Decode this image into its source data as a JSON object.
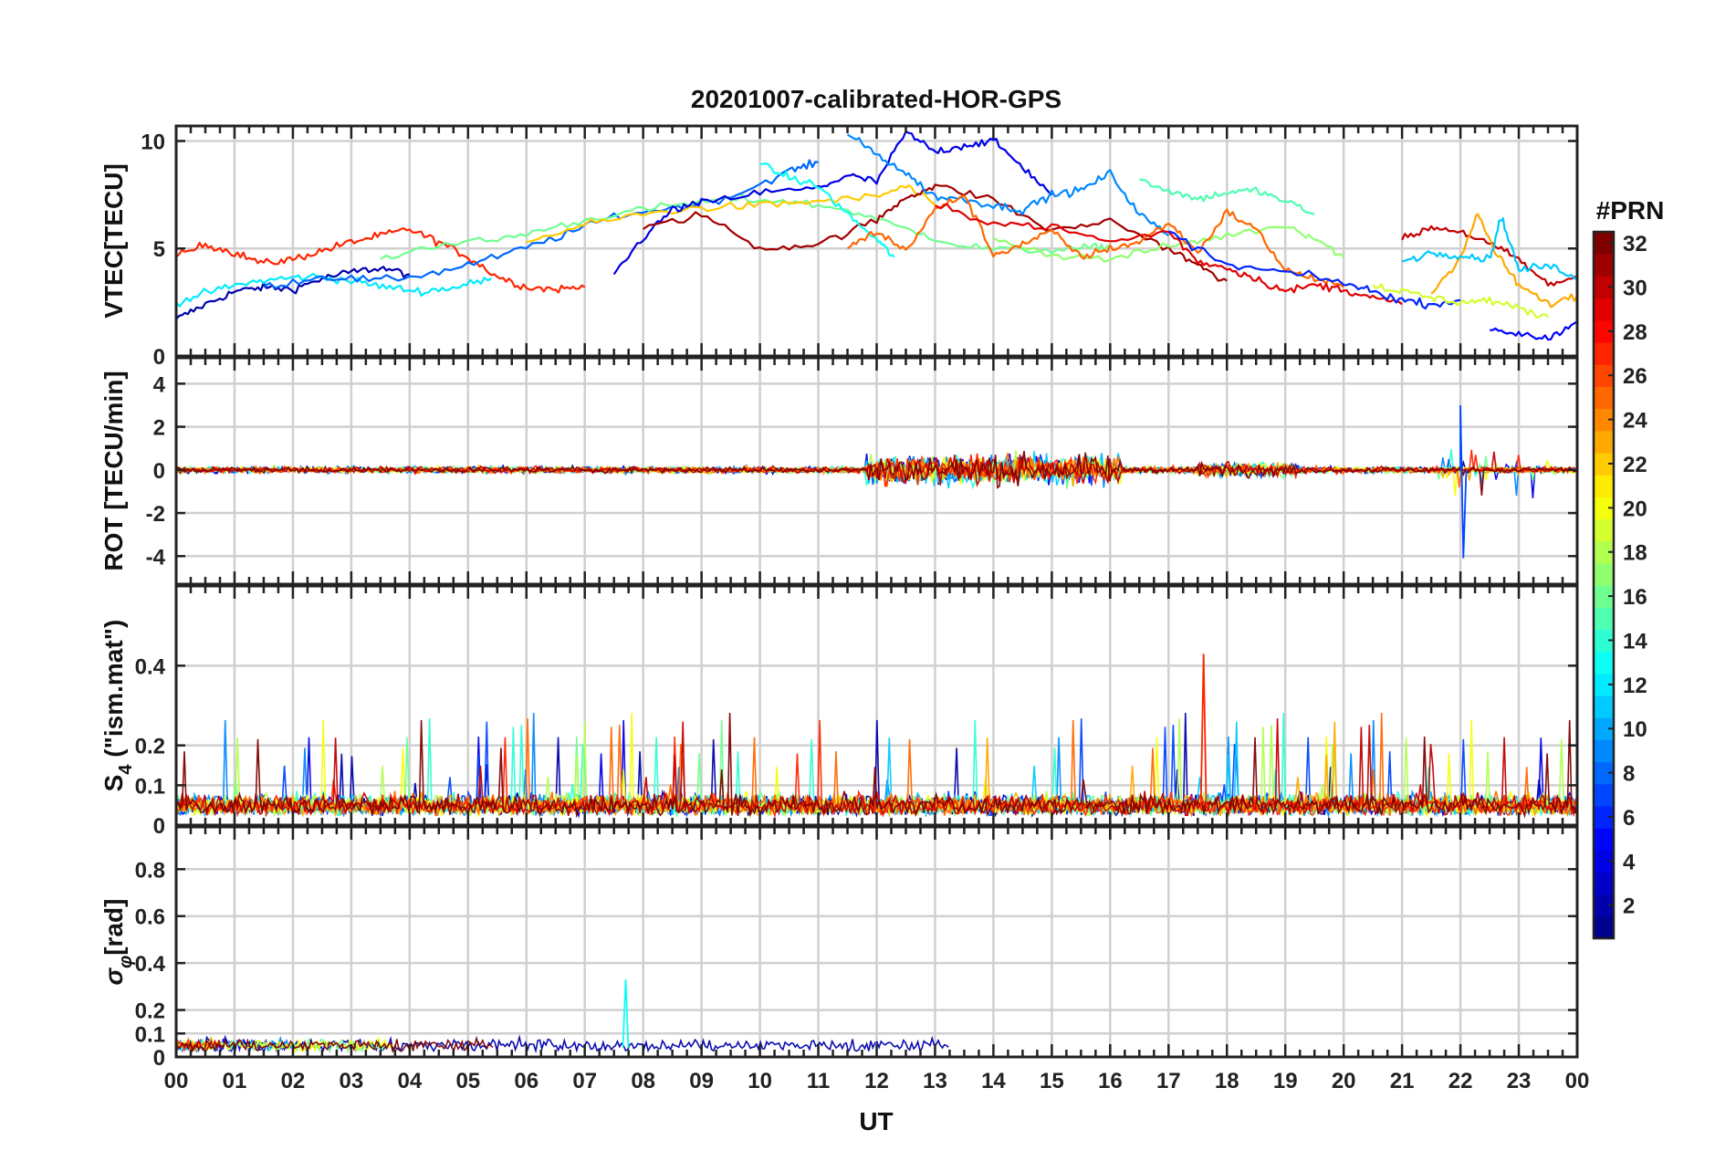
{
  "figure": {
    "title": "20201007-calibrated-HOR-GPS",
    "xlabel": "UT",
    "x_ticks": [
      "00",
      "01",
      "02",
      "03",
      "04",
      "05",
      "06",
      "07",
      "08",
      "09",
      "10",
      "11",
      "12",
      "13",
      "14",
      "15",
      "16",
      "17",
      "18",
      "19",
      "20",
      "21",
      "22",
      "23",
      "00"
    ]
  },
  "colorbar": {
    "title": "#PRN",
    "ticks": [
      "2",
      "4",
      "6",
      "8",
      "10",
      "12",
      "14",
      "16",
      "18",
      "20",
      "22",
      "24",
      "26",
      "28",
      "30",
      "32"
    ],
    "range": [
      1,
      32
    ],
    "colormap": [
      "#00008f",
      "#0000ff",
      "#0080ff",
      "#00ffff",
      "#80ff80",
      "#ffff00",
      "#ff8000",
      "#ff0000",
      "#800000"
    ]
  },
  "chart_data": [
    {
      "type": "line",
      "name": "vtec",
      "ylabel": "VTEC[TECU]",
      "xlim": [
        0,
        24
      ],
      "ylim": [
        0,
        10.7
      ],
      "y_ticks": [
        0,
        5,
        10
      ],
      "y_tick_labels": [
        "0",
        "5",
        "10"
      ],
      "series": [
        {
          "prn": 2,
          "x": [
            0.0,
            0.5,
            1.0,
            1.5,
            2.0,
            2.5,
            3.0,
            3.5,
            4.0
          ],
          "y": [
            1.7,
            2.4,
            3.0,
            3.2,
            3.1,
            3.6,
            3.9,
            4.1,
            3.8
          ]
        },
        {
          "prn": 27,
          "x": [
            0.0,
            0.5,
            1.0,
            1.5,
            2.0,
            2.5,
            3.0,
            3.5,
            4.0,
            4.5,
            5.0,
            5.5,
            6.0,
            6.5,
            7.0
          ],
          "y": [
            4.6,
            5.2,
            4.8,
            4.3,
            4.5,
            4.9,
            5.3,
            5.6,
            5.9,
            5.3,
            4.6,
            3.7,
            3.2,
            3.1,
            3.2
          ]
        },
        {
          "prn": 12,
          "x": [
            0.0,
            0.6,
            1.2,
            1.8,
            2.4,
            3.0,
            3.6,
            4.2,
            4.8,
            5.4
          ],
          "y": [
            2.5,
            3.0,
            3.4,
            3.6,
            3.7,
            3.5,
            3.2,
            3.0,
            3.2,
            3.6
          ]
        },
        {
          "prn": 8,
          "x": [
            1.5,
            2.5,
            3.5,
            4.5,
            5.5,
            6.5,
            7.5,
            8.5,
            9.5,
            10.5,
            11.0
          ],
          "y": [
            3.2,
            3.7,
            3.5,
            3.9,
            4.6,
            5.5,
            6.5,
            6.9,
            7.4,
            8.6,
            9.0
          ]
        },
        {
          "prn": 16,
          "x": [
            3.5,
            4.5,
            5.5,
            6.5,
            7.5,
            8.5,
            9.5,
            10.5,
            11.5,
            12.5,
            13.5,
            14.5,
            15.5,
            16.0
          ],
          "y": [
            4.5,
            5.2,
            5.4,
            6.0,
            6.6,
            7.0,
            7.3,
            7.2,
            6.8,
            5.9,
            5.1,
            4.9,
            5.0,
            5.1
          ]
        },
        {
          "prn": 22,
          "x": [
            6.0,
            7.0,
            8.0,
            9.0,
            10.0,
            11.0,
            12.0,
            12.5,
            13.0
          ],
          "y": [
            5.3,
            6.1,
            6.6,
            6.9,
            7.0,
            7.2,
            7.4,
            7.9,
            7.0
          ]
        },
        {
          "prn": 4,
          "x": [
            7.5,
            8.0,
            8.5,
            9.0,
            10.0,
            11.0,
            11.5,
            12.0,
            12.5,
            13.0,
            13.5,
            14.0,
            14.5,
            15.0
          ],
          "y": [
            3.8,
            5.5,
            6.8,
            7.1,
            7.6,
            7.8,
            8.4,
            8.1,
            10.4,
            9.5,
            9.8,
            10.0,
            8.8,
            7.5
          ]
        },
        {
          "prn": 31,
          "x": [
            8.0,
            9.0,
            10.0,
            11.0,
            12.0,
            12.5,
            13.0,
            14.0,
            15.0,
            16.0,
            17.0,
            17.5,
            18.0
          ],
          "y": [
            5.9,
            6.6,
            5.0,
            5.2,
            6.3,
            7.4,
            7.9,
            7.3,
            5.8,
            6.3,
            5.0,
            4.2,
            3.5
          ]
        },
        {
          "prn": 13,
          "x": [
            10.0,
            10.5,
            11.0,
            11.5,
            12.0,
            12.3
          ],
          "y": [
            8.9,
            8.3,
            7.9,
            6.6,
            5.4,
            4.6
          ]
        },
        {
          "prn": 9,
          "x": [
            11.5,
            12.0,
            12.5,
            13.0,
            13.5,
            14.0,
            14.5,
            15.0,
            15.5,
            16.0,
            16.5,
            17.0
          ],
          "y": [
            10.3,
            9.4,
            8.5,
            7.4,
            7.3,
            7.0,
            6.8,
            7.5,
            7.7,
            8.5,
            6.6,
            5.6
          ]
        },
        {
          "prn": 17,
          "x": [
            14.0,
            15.0,
            16.0,
            17.0,
            18.0,
            19.0,
            19.5,
            20.0
          ],
          "y": [
            5.5,
            4.7,
            4.5,
            5.1,
            5.6,
            6.1,
            5.5,
            4.6
          ]
        },
        {
          "prn": 15,
          "x": [
            16.5,
            17.0,
            17.5,
            18.0,
            18.5,
            19.0,
            19.5
          ],
          "y": [
            8.2,
            7.7,
            7.3,
            7.6,
            7.7,
            7.2,
            6.6
          ]
        },
        {
          "prn": 25,
          "x": [
            11.5,
            12.0,
            12.5,
            13.0,
            13.5,
            14.0,
            14.5,
            15.0,
            15.5,
            16.0,
            16.5,
            17.0,
            17.5,
            18.0,
            18.5,
            19.0,
            19.5,
            20.0
          ],
          "y": [
            5.0,
            5.8,
            4.9,
            6.8,
            7.5,
            4.7,
            5.2,
            5.8,
            4.6,
            5.0,
            5.3,
            6.2,
            4.8,
            6.7,
            5.9,
            4.0,
            3.6,
            3.2
          ]
        },
        {
          "prn": 29,
          "x": [
            13.0,
            14.0,
            15.0,
            16.0,
            17.0,
            17.5,
            18.0,
            18.5,
            19.0,
            19.5,
            20.0,
            20.5,
            21.0
          ],
          "y": [
            7.0,
            6.2,
            6.0,
            5.3,
            5.8,
            4.4,
            4.1,
            3.6,
            3.0,
            3.3,
            3.1,
            2.7,
            2.4
          ]
        },
        {
          "prn": 6,
          "x": [
            17.0,
            18.0,
            19.0,
            20.0,
            20.5,
            21.0,
            21.5,
            22.0
          ],
          "y": [
            5.8,
            4.2,
            3.9,
            3.4,
            3.0,
            2.6,
            2.4,
            2.6
          ]
        },
        {
          "prn": 30,
          "x": [
            21.0,
            21.5,
            22.0,
            22.5,
            23.0,
            23.5,
            24.0
          ],
          "y": [
            5.4,
            6.0,
            5.8,
            5.2,
            4.5,
            3.3,
            3.7
          ]
        },
        {
          "prn": 23,
          "x": [
            21.5,
            22.0,
            22.3,
            22.6,
            23.0,
            23.5,
            24.0
          ],
          "y": [
            2.9,
            4.6,
            6.6,
            4.8,
            3.3,
            2.4,
            2.8
          ]
        },
        {
          "prn": 11,
          "x": [
            21.0,
            21.5,
            22.0,
            22.5,
            22.7,
            23.0,
            23.5,
            24.0
          ],
          "y": [
            4.4,
            4.8,
            4.7,
            4.5,
            6.5,
            4.0,
            4.2,
            3.7
          ]
        },
        {
          "prn": 5,
          "x": [
            22.5,
            23.0,
            23.5,
            24.0
          ],
          "y": [
            1.2,
            1.1,
            0.8,
            1.6
          ]
        },
        {
          "prn": 19,
          "x": [
            20.5,
            21.0,
            21.5,
            22.0,
            22.5,
            23.0,
            23.5
          ],
          "y": [
            3.3,
            3.0,
            2.7,
            2.5,
            2.6,
            2.2,
            1.8
          ]
        }
      ]
    },
    {
      "type": "line",
      "name": "rot",
      "ylabel": "ROT [TECU/min]",
      "xlim": [
        0,
        24
      ],
      "ylim": [
        -5.3,
        5.2
      ],
      "y_ticks": [
        -4,
        -2,
        0,
        2,
        4
      ],
      "y_tick_labels": [
        "-4",
        "-2",
        "0",
        "2",
        "4"
      ],
      "description_values": {
        "baseline": 0,
        "quiet_amplitude": 0.3,
        "active_amplitude_12_to_16UT": 1.4,
        "max_spike": 3.0,
        "min_spike": -4.1,
        "spike_time": 22.0
      }
    },
    {
      "type": "line",
      "name": "s4",
      "ylabel": "S4 (\"ism.mat\")",
      "ylabel_main": "S",
      "ylabel_sub": "4",
      "ylabel_rest": " (\"ism.mat\")",
      "xlim": [
        0,
        24
      ],
      "ylim": [
        0,
        0.6
      ],
      "y_ticks": [
        0,
        0.1,
        0.2,
        0.4
      ],
      "y_tick_labels": [
        "0",
        "0.1",
        "0.2",
        "0.4"
      ],
      "description_values": {
        "background": 0.04,
        "typical_peak": 0.2,
        "max_peak": 0.43,
        "max_peak_time": 17.6
      }
    },
    {
      "type": "line",
      "name": "sigma-phi",
      "ylabel": "σφ[rad]",
      "ylabel_main": "σ",
      "ylabel_sub": "φ",
      "ylabel_rest": "[rad]",
      "xlim": [
        0,
        24
      ],
      "ylim": [
        0,
        0.98
      ],
      "y_ticks": [
        0,
        0.1,
        0.2,
        0.4,
        0.6,
        0.8
      ],
      "y_tick_labels": [
        "0",
        "0.1",
        "0.2",
        "0.4",
        "0.6",
        "0.8"
      ],
      "description_values": {
        "background": 0.04,
        "max_peak": 0.33,
        "max_peak_time": 7.7
      }
    }
  ]
}
